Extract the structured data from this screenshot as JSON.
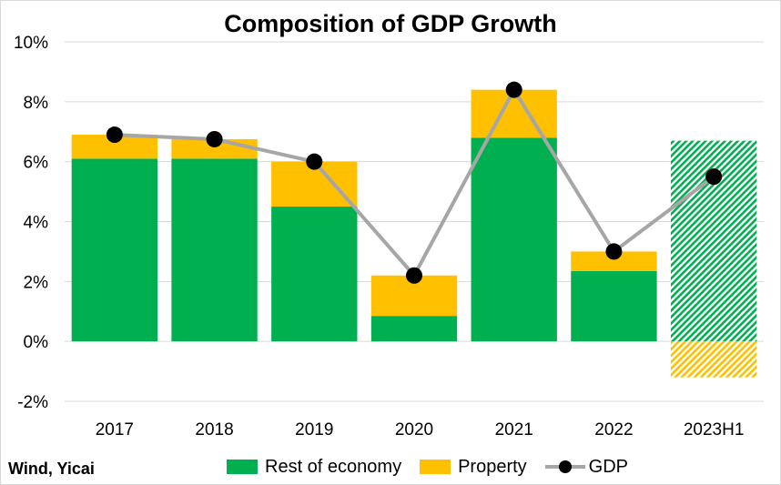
{
  "chart_data": {
    "type": "bar",
    "title": "Composition of GDP Growth",
    "categories": [
      "2017",
      "2018",
      "2019",
      "2020",
      "2021",
      "2022",
      "2023H1"
    ],
    "series": [
      {
        "name": "Rest of economy",
        "kind": "stacked-bar",
        "color": "#00b050",
        "values": [
          6.1,
          6.1,
          4.5,
          0.85,
          6.8,
          2.35,
          6.7
        ]
      },
      {
        "name": "Property",
        "kind": "stacked-bar",
        "color": "#ffc000",
        "values": [
          0.8,
          0.65,
          1.5,
          1.35,
          1.6,
          0.65,
          -1.2
        ]
      },
      {
        "name": "GDP",
        "kind": "line",
        "color": "#a6a6a6",
        "marker_color": "#000000",
        "values": [
          6.9,
          6.75,
          6.0,
          2.2,
          8.4,
          3.0,
          5.5
        ]
      }
    ],
    "hatched_categories": [
      "2023H1"
    ],
    "ylim": [
      -2,
      10
    ],
    "yticks": [
      -2,
      0,
      2,
      4,
      6,
      8,
      10
    ],
    "ytick_labels": [
      "-2%",
      "0%",
      "2%",
      "4%",
      "6%",
      "8%",
      "10%"
    ],
    "xlabel": "",
    "ylabel": "",
    "grid": true,
    "legend": "bottom"
  },
  "source": "Wind, Yicai"
}
